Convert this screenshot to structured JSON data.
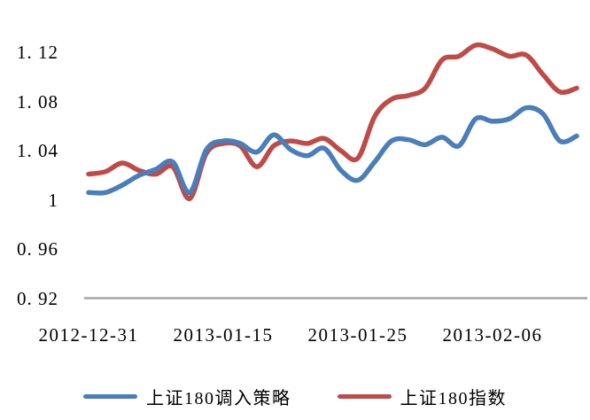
{
  "figure": {
    "background": "#ffffff"
  },
  "chart_data": {
    "type": "line",
    "title": "",
    "xlabel": "",
    "ylabel": "",
    "grid": "off",
    "legend_position": "bottom",
    "axis_line_color": "#a6a6a6",
    "ylim": [
      0.92,
      1.135
    ],
    "y_ticks": [
      {
        "value": 1.12,
        "label": "1. 12"
      },
      {
        "value": 1.08,
        "label": "1. 08"
      },
      {
        "value": 1.04,
        "label": "1. 04"
      },
      {
        "value": 1.0,
        "label": "1"
      },
      {
        "value": 0.96,
        "label": "0. 96"
      },
      {
        "value": 0.92,
        "label": "0. 92"
      }
    ],
    "x_points": 30,
    "x_tick_labels": [
      {
        "index": 0,
        "label": "2012-12-31"
      },
      {
        "index": 8,
        "label": "2013-01-15"
      },
      {
        "index": 16,
        "label": "2013-01-25"
      },
      {
        "index": 24,
        "label": "2013-02-06"
      }
    ],
    "series": [
      {
        "name": "上证180调入策略",
        "color": "#4a7ebb",
        "values": [
          1.006,
          1.006,
          1.012,
          1.02,
          1.025,
          1.031,
          1.006,
          1.041,
          1.048,
          1.046,
          1.039,
          1.053,
          1.041,
          1.036,
          1.042,
          1.024,
          1.016,
          1.031,
          1.048,
          1.049,
          1.045,
          1.051,
          1.044,
          1.066,
          1.064,
          1.066,
          1.075,
          1.07,
          1.048,
          1.052
        ]
      },
      {
        "name": "上证180指数",
        "color": "#be4b48",
        "values": [
          1.021,
          1.023,
          1.03,
          1.024,
          1.021,
          1.027,
          1.001,
          1.038,
          1.046,
          1.044,
          1.027,
          1.044,
          1.048,
          1.046,
          1.05,
          1.04,
          1.034,
          1.068,
          1.082,
          1.085,
          1.091,
          1.114,
          1.117,
          1.126,
          1.123,
          1.117,
          1.118,
          1.102,
          1.088,
          1.091
        ]
      }
    ]
  }
}
